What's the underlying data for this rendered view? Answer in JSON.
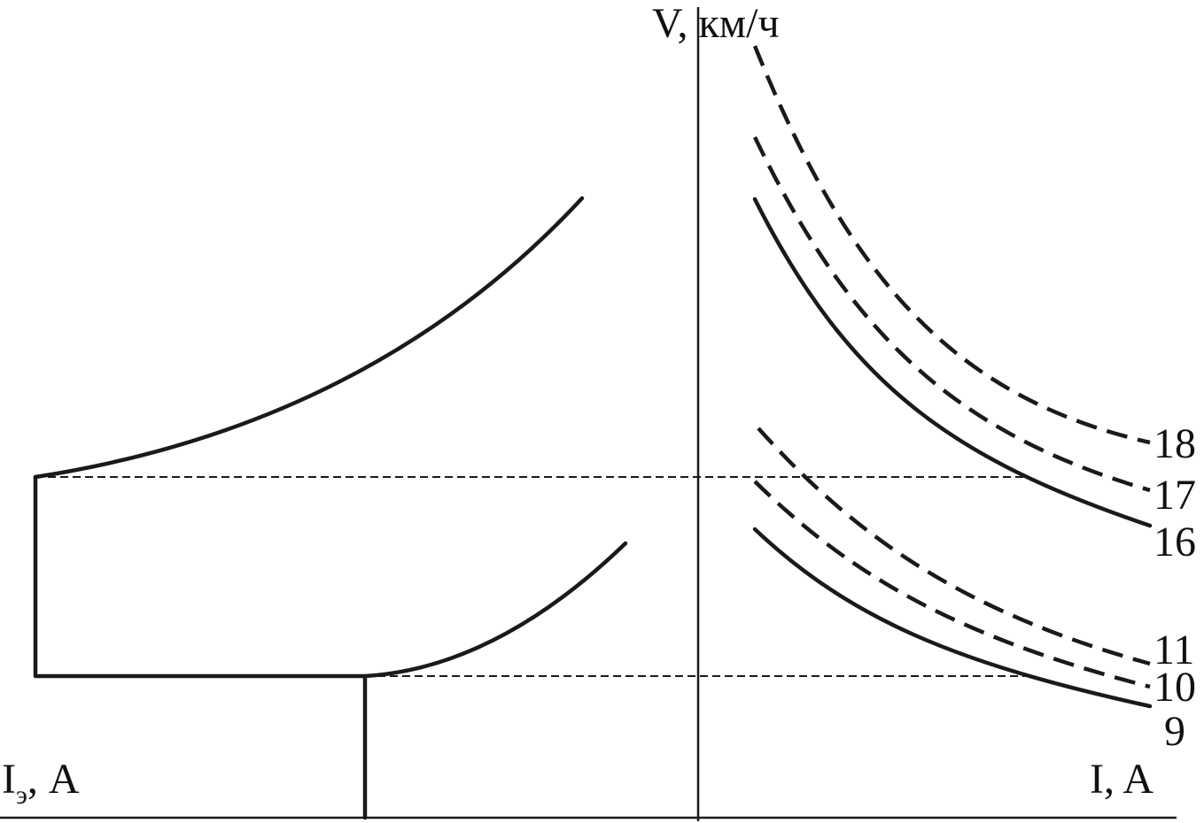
{
  "axes": {
    "v_label": "V, км/ч",
    "i_label": "I, A",
    "ie_label_main": "I",
    "ie_label_sub": "э",
    "ie_label_unit": ", A"
  },
  "curves": [
    {
      "label": "18",
      "style": "dashed"
    },
    {
      "label": "17",
      "style": "dashed"
    },
    {
      "label": "16",
      "style": "solid"
    },
    {
      "label": "11",
      "style": "dashed"
    },
    {
      "label": "10",
      "style": "dashed"
    },
    {
      "label": "9",
      "style": "solid"
    }
  ]
}
